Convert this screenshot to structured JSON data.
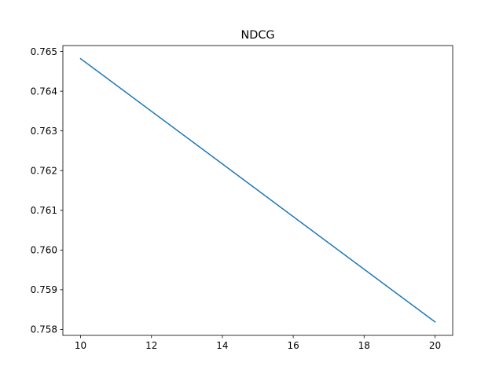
{
  "chart_data": {
    "type": "line",
    "title": "NDCG",
    "xlabel": "",
    "ylabel": "",
    "x": [
      10,
      20
    ],
    "series": [
      {
        "values": [
          0.76482,
          0.75819
        ],
        "color": "#1f77b4"
      }
    ],
    "xlim": [
      9.5,
      20.5
    ],
    "ylim": [
      0.75785,
      0.76515
    ],
    "xticks": [
      10,
      12,
      14,
      16,
      18,
      20
    ],
    "yticks": [
      0.758,
      0.759,
      0.76,
      0.761,
      0.762,
      0.763,
      0.764,
      0.765
    ],
    "ytick_labels": [
      "0.758",
      "0.759",
      "0.760",
      "0.761",
      "0.762",
      "0.763",
      "0.764",
      "0.765"
    ],
    "grid": false,
    "legend": "none"
  }
}
